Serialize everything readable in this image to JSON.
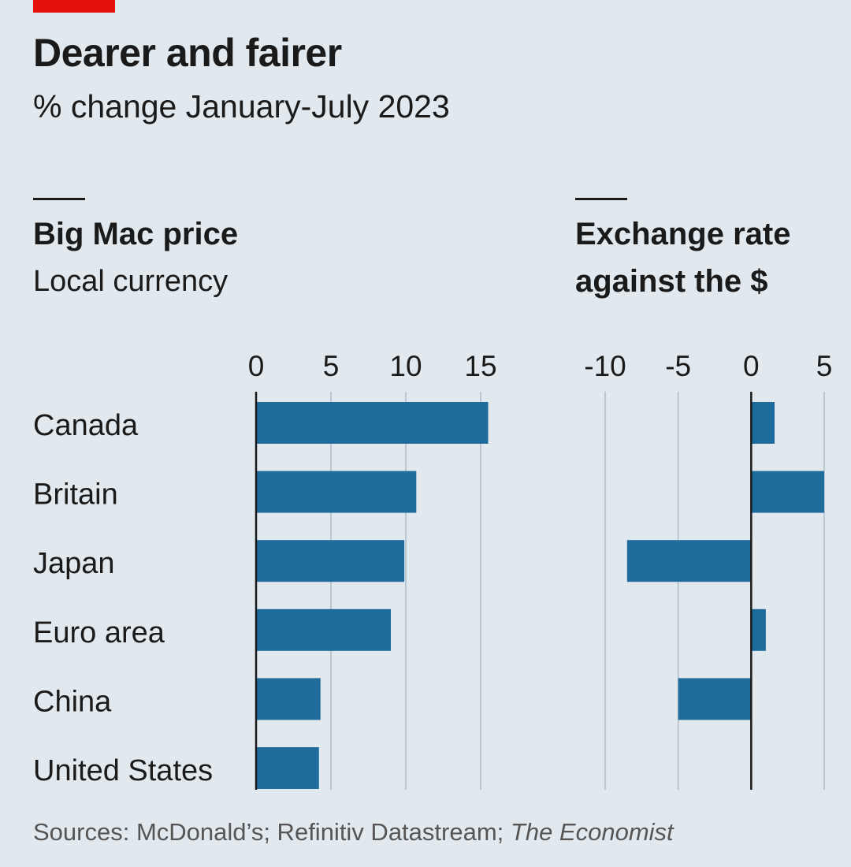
{
  "header": {
    "title": "Dearer and fairer",
    "subtitle": "% change January-July 2023"
  },
  "colors": {
    "bar": "#1f6b9c",
    "grid": "#b9c7d0",
    "axis": "#1a1a1a",
    "tag": "#e3120b"
  },
  "chart_data": [
    {
      "type": "bar",
      "orientation": "horizontal",
      "title": "Big Mac price",
      "subtitle": "Local currency",
      "categories": [
        "Canada",
        "Britain",
        "Japan",
        "Euro area",
        "China",
        "United States"
      ],
      "values": [
        15.5,
        10.7,
        9.9,
        9.0,
        4.3,
        4.2
      ],
      "ticks": [
        "0",
        "5",
        "10",
        "15"
      ],
      "xlim": [
        0,
        17
      ]
    },
    {
      "type": "bar",
      "orientation": "horizontal",
      "title_line1": "Exchange rate",
      "title_line2": "against the $",
      "categories": [
        "Canada",
        "Britain",
        "Japan",
        "Euro area",
        "China",
        "United States"
      ],
      "values": [
        1.6,
        5.0,
        -8.5,
        1.0,
        -5.0,
        0
      ],
      "ticks": [
        "-10",
        "-5",
        "0",
        "5"
      ],
      "xlim": [
        -12.5,
        5.3
      ]
    }
  ],
  "footer": {
    "source_prefix": "Sources: McDonald’s; Refinitiv Datastream; ",
    "source_italic": "The Economist"
  }
}
